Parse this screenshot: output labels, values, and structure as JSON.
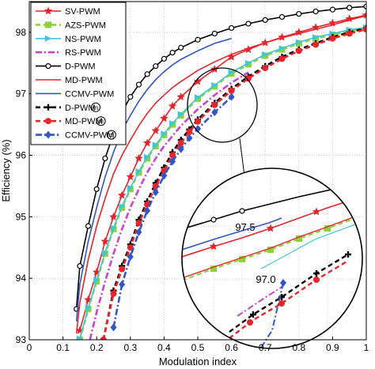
{
  "chart_data": {
    "type": "line",
    "xlabel": "Modulation index",
    "ylabel": "Efficiency (%)",
    "xlim": [
      0,
      1
    ],
    "ylim": [
      93,
      98.5
    ],
    "xticks": [
      "0",
      "0.1",
      "0.2",
      "0.3",
      "0.4",
      "0.5",
      "0.6",
      "0.7",
      "0.8",
      "0.9",
      "1"
    ],
    "yticks": [
      "93",
      "94",
      "95",
      "96",
      "97",
      "98"
    ],
    "grid": true,
    "legend_position": "top-left",
    "series": [
      {
        "name": "SV-PWM",
        "color": "#e8242b",
        "dash": "solid",
        "marker": "star",
        "x": [
          0.15,
          0.175,
          0.2,
          0.225,
          0.25,
          0.275,
          0.3,
          0.325,
          0.35,
          0.375,
          0.4,
          0.425,
          0.45,
          0.5,
          0.55,
          0.6,
          0.65,
          0.7,
          0.75,
          0.8,
          0.85,
          0.9,
          0.95,
          1.0
        ],
        "y": [
          93.15,
          93.65,
          94.1,
          94.6,
          95.0,
          95.35,
          95.65,
          95.95,
          96.2,
          96.4,
          96.6,
          96.8,
          96.95,
          97.2,
          97.4,
          97.6,
          97.72,
          97.83,
          97.92,
          98.0,
          98.08,
          98.15,
          98.22,
          98.28
        ]
      },
      {
        "name": "AZS-PWM",
        "color": "#8cd33a",
        "dash": "dash",
        "marker": "square",
        "x": [
          0.15,
          0.175,
          0.2,
          0.225,
          0.25,
          0.275,
          0.3,
          0.325,
          0.35,
          0.375,
          0.4,
          0.425,
          0.45,
          0.5,
          0.55,
          0.6,
          0.65,
          0.7,
          0.75,
          0.8,
          0.85,
          0.9,
          0.95,
          1.0
        ],
        "y": [
          93.0,
          93.5,
          93.95,
          94.4,
          94.8,
          95.15,
          95.45,
          95.72,
          95.95,
          96.15,
          96.33,
          96.5,
          96.65,
          96.92,
          97.12,
          97.33,
          97.48,
          97.62,
          97.72,
          97.82,
          97.9,
          97.96,
          98.02,
          98.06
        ]
      },
      {
        "name": "NS-PWM",
        "color": "#3ec7d8",
        "dash": "solid",
        "marker": "triangle-right",
        "x": [
          0.15,
          0.175,
          0.2,
          0.225,
          0.25,
          0.275,
          0.3,
          0.325,
          0.35,
          0.375,
          0.4,
          0.425,
          0.45,
          0.5,
          0.55,
          0.6,
          0.65,
          0.7,
          0.75,
          0.8,
          0.85,
          0.9,
          0.95,
          1.0
        ],
        "y": [
          93.02,
          93.52,
          93.97,
          94.42,
          94.82,
          95.17,
          95.47,
          95.74,
          95.97,
          96.17,
          96.35,
          96.52,
          96.67,
          96.94,
          97.14,
          97.35,
          97.5,
          97.64,
          97.74,
          97.84,
          97.92,
          97.98,
          98.04,
          98.08
        ]
      },
      {
        "name": "RS-PWM",
        "color": "#cc44cc",
        "dash": "dashdot",
        "marker": "none",
        "x": [
          0.18,
          0.2,
          0.225,
          0.25,
          0.275,
          0.3,
          0.325,
          0.35,
          0.375,
          0.4,
          0.45,
          0.5,
          0.55,
          0.6,
          0.65
        ],
        "y": [
          93.0,
          93.45,
          93.95,
          94.4,
          94.8,
          95.15,
          95.45,
          95.72,
          95.95,
          96.15,
          96.48,
          96.75,
          96.98,
          97.18,
          97.35
        ]
      },
      {
        "name": "D-PWM",
        "color": "#000000",
        "dash": "solid",
        "marker": "circle",
        "x": [
          0.14,
          0.15,
          0.175,
          0.2,
          0.225,
          0.25,
          0.275,
          0.3,
          0.325,
          0.35,
          0.375,
          0.4,
          0.425,
          0.45,
          0.5,
          0.55,
          0.6,
          0.65,
          0.7,
          0.75,
          0.8,
          0.85,
          0.9,
          0.95,
          1.0
        ],
        "y": [
          93.5,
          94.2,
          94.85,
          95.45,
          95.95,
          96.35,
          96.7,
          96.95,
          97.15,
          97.32,
          97.45,
          97.57,
          97.67,
          97.75,
          97.88,
          97.98,
          98.07,
          98.14,
          98.2,
          98.25,
          98.3,
          98.34,
          98.37,
          98.4,
          98.42
        ]
      },
      {
        "name": "MD-PWM",
        "color": "#e8242b",
        "dash": "solid",
        "marker": "none",
        "x": [
          0.14,
          0.15,
          0.175,
          0.2,
          0.225,
          0.25,
          0.275,
          0.3,
          0.325,
          0.35,
          0.375,
          0.4,
          0.425,
          0.45,
          0.5,
          0.55,
          0.6,
          0.65,
          0.7,
          0.75,
          0.8,
          0.85,
          0.9,
          0.95,
          1.0
        ],
        "y": [
          93.1,
          93.6,
          94.3,
          94.85,
          95.3,
          95.7,
          96.0,
          96.25,
          96.48,
          96.68,
          96.85,
          96.98,
          97.1,
          97.2,
          97.38,
          97.52,
          97.64,
          97.74,
          97.83,
          97.91,
          97.98,
          98.05,
          98.12,
          98.2,
          98.27
        ]
      },
      {
        "name": "CCMV-PWM",
        "color": "#2f57c6",
        "dash": "solid",
        "marker": "none",
        "x": [
          0.14,
          0.15,
          0.175,
          0.2,
          0.225,
          0.25,
          0.275,
          0.3,
          0.325,
          0.35,
          0.375,
          0.4,
          0.425,
          0.45,
          0.5,
          0.55,
          0.6
        ],
        "y": [
          93.3,
          93.9,
          94.6,
          95.15,
          95.65,
          96.05,
          96.4,
          96.65,
          96.88,
          97.07,
          97.23,
          97.36,
          97.47,
          97.56,
          97.7,
          97.82,
          97.9
        ]
      },
      {
        "name": "D-PWM",
        "color": "#000000",
        "dash": "dash",
        "marker": "plus",
        "x": [
          0.22,
          0.25,
          0.275,
          0.3,
          0.325,
          0.35,
          0.375,
          0.4,
          0.425,
          0.45,
          0.475,
          0.5,
          0.55,
          0.6,
          0.65,
          0.7,
          0.75,
          0.8,
          0.85,
          0.9,
          0.95,
          1.0
        ],
        "y": [
          93.0,
          93.8,
          94.2,
          94.55,
          94.95,
          95.25,
          95.55,
          95.8,
          96.05,
          96.25,
          96.42,
          96.58,
          96.85,
          97.08,
          97.28,
          97.45,
          97.6,
          97.72,
          97.82,
          97.92,
          98.0,
          98.07
        ]
      },
      {
        "name": "MD-PWM",
        "color": "#e8242b",
        "dash": "dash",
        "marker": "circle-filled",
        "x": [
          0.22,
          0.25,
          0.275,
          0.3,
          0.325,
          0.35,
          0.375,
          0.4,
          0.425,
          0.45,
          0.475,
          0.5,
          0.55,
          0.6,
          0.65,
          0.7,
          0.75,
          0.8,
          0.85,
          0.9,
          0.95,
          1.0
        ],
        "y": [
          93.0,
          93.75,
          94.15,
          94.5,
          94.9,
          95.2,
          95.5,
          95.75,
          96.0,
          96.2,
          96.38,
          96.55,
          96.82,
          97.05,
          97.25,
          97.42,
          97.57,
          97.7,
          97.8,
          97.9,
          97.98,
          98.05
        ]
      },
      {
        "name": "CCMV-PWM",
        "color": "#2f57c6",
        "dash": "dashdot",
        "marker": "diamond",
        "x": [
          0.25,
          0.275,
          0.3,
          0.325,
          0.35,
          0.375,
          0.4,
          0.425,
          0.45,
          0.475,
          0.5,
          0.55,
          0.6
        ],
        "y": [
          93.2,
          93.9,
          94.35,
          94.75,
          95.1,
          95.4,
          95.67,
          95.9,
          96.1,
          96.28,
          96.43,
          96.7,
          96.95
        ]
      }
    ],
    "legend_suffix_symbol": "m",
    "annotations": {
      "zoom_labels": [
        "97.5",
        "97.0"
      ]
    }
  }
}
